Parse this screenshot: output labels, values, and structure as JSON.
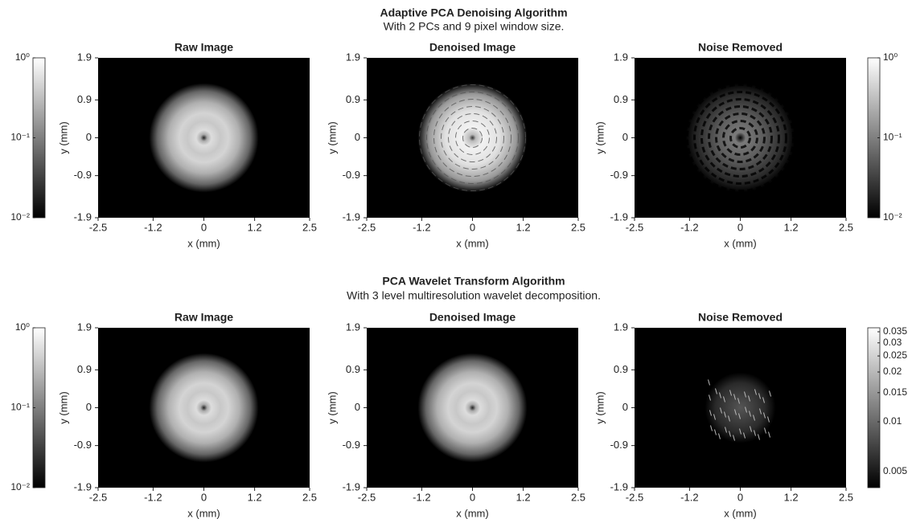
{
  "sections": [
    {
      "title": "Adaptive PCA Denoising Algorithm",
      "subtitle": "With 2 PCs and 9 pixel window size."
    },
    {
      "title": "PCA Wavelet Transform Algorithm",
      "subtitle": "With 3 level multiresolution wavelet decomposition."
    }
  ],
  "chart_data": [
    {
      "type": "image",
      "title": "Raw Image",
      "x_label": "x (mm)",
      "y_label": "y (mm)",
      "xlim": [
        -2.5,
        2.5
      ],
      "ylim": [
        -1.9,
        1.9
      ],
      "xticks": [
        -2.5,
        -1.2,
        0,
        1.2,
        2.5
      ],
      "yticks": [
        -1.9,
        -0.9,
        0,
        0.9,
        1.9
      ]
    },
    {
      "type": "image",
      "title": "Denoised Image",
      "x_label": "x (mm)",
      "y_label": "y (mm)",
      "xlim": [
        -2.5,
        2.5
      ],
      "ylim": [
        -1.9,
        1.9
      ],
      "xticks": [
        -2.5,
        -1.2,
        0,
        1.2,
        2.5
      ],
      "yticks": [
        -1.9,
        -0.9,
        0,
        0.9,
        1.9
      ]
    },
    {
      "type": "image",
      "title": "Noise Removed",
      "x_label": "x (mm)",
      "y_label": "y (mm)",
      "xlim": [
        -2.5,
        2.5
      ],
      "ylim": [
        -1.9,
        1.9
      ],
      "xticks": [
        -2.5,
        -1.2,
        0,
        1.2,
        2.5
      ],
      "yticks": [
        -1.9,
        -0.9,
        0,
        0.9,
        1.9
      ]
    },
    {
      "type": "image",
      "title": "Raw Image",
      "x_label": "x (mm)",
      "y_label": "y (mm)",
      "xlim": [
        -2.5,
        2.5
      ],
      "ylim": [
        -1.9,
        1.9
      ],
      "xticks": [
        -2.5,
        -1.2,
        0,
        1.2,
        2.5
      ],
      "yticks": [
        -1.9,
        -0.9,
        0,
        0.9,
        1.9
      ]
    },
    {
      "type": "image",
      "title": "Denoised Image",
      "x_label": "x (mm)",
      "y_label": "y (mm)",
      "xlim": [
        -2.5,
        2.5
      ],
      "ylim": [
        -1.9,
        1.9
      ],
      "xticks": [
        -2.5,
        -1.2,
        0,
        1.2,
        2.5
      ],
      "yticks": [
        -1.9,
        -0.9,
        0,
        0.9,
        1.9
      ]
    },
    {
      "type": "image",
      "title": "Noise Removed",
      "x_label": "x (mm)",
      "y_label": "y (mm)",
      "xlim": [
        -2.5,
        2.5
      ],
      "ylim": [
        -1.9,
        1.9
      ],
      "xticks": [
        -2.5,
        -1.2,
        0,
        1.2,
        2.5
      ],
      "yticks": [
        -1.9,
        -0.9,
        0,
        0.9,
        1.9
      ]
    },
    {
      "type": "colorbar",
      "log_scale": true,
      "ylim": [
        0.01,
        1
      ],
      "yticks": [
        {
          "value": 0.01,
          "label": "10⁻²"
        },
        {
          "value": 0.1,
          "label": "10⁻¹"
        },
        {
          "value": 1,
          "label": "10⁰"
        }
      ]
    },
    {
      "type": "colorbar",
      "log_scale": true,
      "ylim": [
        0.01,
        1
      ],
      "yticks": [
        {
          "value": 0.01,
          "label": "10⁻²"
        },
        {
          "value": 0.1,
          "label": "10⁻¹"
        },
        {
          "value": 1,
          "label": "10⁰"
        }
      ]
    },
    {
      "type": "colorbar",
      "log_scale": true,
      "ylim": [
        0.01,
        1
      ],
      "yticks": [
        {
          "value": 0.01,
          "label": "10⁻²"
        },
        {
          "value": 0.1,
          "label": "10⁻¹"
        },
        {
          "value": 1,
          "label": "10⁰"
        }
      ]
    },
    {
      "type": "colorbar",
      "log_scale": true,
      "ylim": [
        0.004,
        0.037
      ],
      "yticks": [
        0.005,
        0.01,
        0.015,
        0.02,
        0.025,
        0.03,
        0.035
      ]
    }
  ]
}
